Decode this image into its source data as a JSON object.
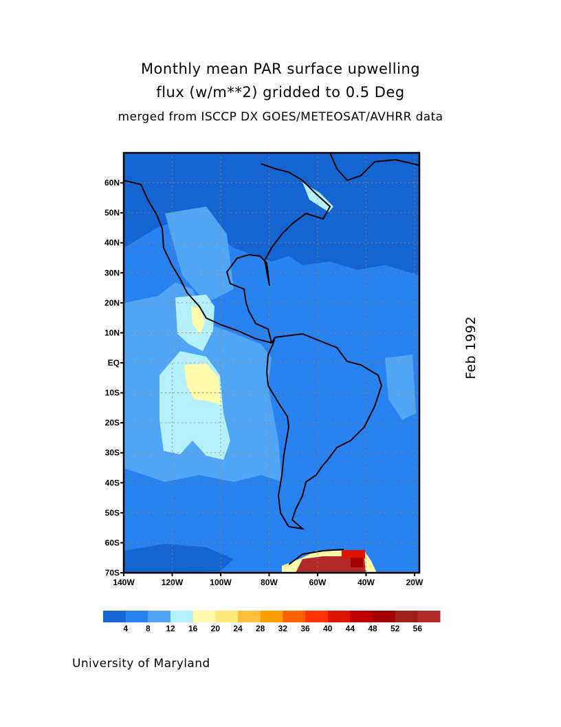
{
  "title": {
    "line1": "Monthly mean PAR surface upwelling",
    "line2": "flux (w/m**2) gridded to 0.5 Deg",
    "line3": "merged from ISCCP DX GOES/METEOSAT/AVHRR data"
  },
  "date_label": "Feb 1992",
  "credit": "University of Maryland",
  "map": {
    "lon_range": [
      -140,
      -18
    ],
    "lat_range": [
      -70,
      70
    ],
    "lat_ticks": [
      {
        "value": 60,
        "label": "60N"
      },
      {
        "value": 50,
        "label": "50N"
      },
      {
        "value": 40,
        "label": "40N"
      },
      {
        "value": 30,
        "label": "30N"
      },
      {
        "value": 20,
        "label": "20N"
      },
      {
        "value": 10,
        "label": "10N"
      },
      {
        "value": 0,
        "label": "EQ"
      },
      {
        "value": -10,
        "label": "10S"
      },
      {
        "value": -20,
        "label": "20S"
      },
      {
        "value": -30,
        "label": "30S"
      },
      {
        "value": -40,
        "label": "40S"
      },
      {
        "value": -50,
        "label": "50S"
      },
      {
        "value": -60,
        "label": "60S"
      },
      {
        "value": -70,
        "label": "70S"
      }
    ],
    "lon_ticks": [
      {
        "value": -140,
        "label": "140W"
      },
      {
        "value": -120,
        "label": "120W"
      },
      {
        "value": -100,
        "label": "100W"
      },
      {
        "value": -80,
        "label": "80W"
      },
      {
        "value": -60,
        "label": "60W"
      },
      {
        "value": -40,
        "label": "40W"
      },
      {
        "value": -20,
        "label": "20W"
      }
    ]
  },
  "colorbar": {
    "colors": [
      "#1464d2",
      "#2882f0",
      "#50a5f5",
      "#b4f0fa",
      "#fffaaa",
      "#ffe878",
      "#ffc03c",
      "#ffa000",
      "#ff6000",
      "#ff3200",
      "#e11400",
      "#c00000",
      "#a50000",
      "#a01e1e",
      "#b22a2a"
    ],
    "labels": [
      "4",
      "8",
      "12",
      "16",
      "20",
      "24",
      "28",
      "32",
      "36",
      "40",
      "44",
      "48",
      "52",
      "56"
    ]
  }
}
